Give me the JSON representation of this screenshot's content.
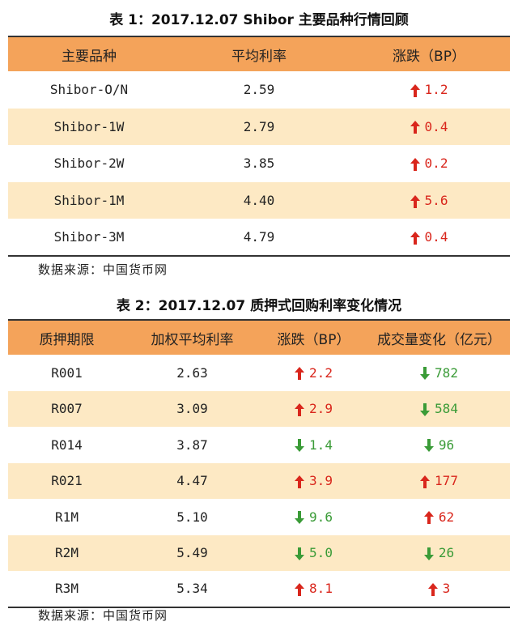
{
  "table1": {
    "title": "表 1：2017.12.07 Shibor 主要品种行情回顾",
    "headers": [
      "主要品种",
      "平均利率",
      "涨跌（BP）"
    ],
    "rows": [
      {
        "name": "Shibor-O/N",
        "rate": "2.59",
        "change": "1.2",
        "dir": "up"
      },
      {
        "name": "Shibor-1W",
        "rate": "2.79",
        "change": "0.4",
        "dir": "up"
      },
      {
        "name": "Shibor-2W",
        "rate": "3.85",
        "change": "0.2",
        "dir": "up"
      },
      {
        "name": "Shibor-1M",
        "rate": "4.40",
        "change": "5.6",
        "dir": "up"
      },
      {
        "name": "Shibor-3M",
        "rate": "4.79",
        "change": "0.4",
        "dir": "up"
      }
    ],
    "source": "数据来源：中国货币网"
  },
  "table2": {
    "title": "表 2：2017.12.07 质押式回购利率变化情况",
    "headers": [
      "质押期限",
      "加权平均利率",
      "涨跌（BP）",
      "成交量变化（亿元）"
    ],
    "rows": [
      {
        "term": "R001",
        "rate": "2.63",
        "change": "2.2",
        "change_dir": "up",
        "volume": "782",
        "volume_dir": "down"
      },
      {
        "term": "R007",
        "rate": "3.09",
        "change": "2.9",
        "change_dir": "up",
        "volume": "584",
        "volume_dir": "down"
      },
      {
        "term": "R014",
        "rate": "3.87",
        "change": "1.4",
        "change_dir": "down",
        "volume": "96",
        "volume_dir": "down"
      },
      {
        "term": "R021",
        "rate": "4.47",
        "change": "3.9",
        "change_dir": "up",
        "volume": "177",
        "volume_dir": "up"
      },
      {
        "term": "R1M",
        "rate": "5.10",
        "change": "9.6",
        "change_dir": "down",
        "volume": "62",
        "volume_dir": "up"
      },
      {
        "term": "R2M",
        "rate": "5.49",
        "change": "5.0",
        "change_dir": "down",
        "volume": "26",
        "volume_dir": "down"
      },
      {
        "term": "R3M",
        "rate": "5.34",
        "change": "8.1",
        "change_dir": "up",
        "volume": "3",
        "volume_dir": "up"
      }
    ],
    "source": "数据来源：中国货币网"
  },
  "colors": {
    "header_bg": "#f4a35a",
    "alt_row_bg": "#fde9c4",
    "up": "#d9261c",
    "down": "#3a9b37"
  },
  "icons": {
    "up": "arrow-up-icon",
    "down": "arrow-down-icon"
  }
}
